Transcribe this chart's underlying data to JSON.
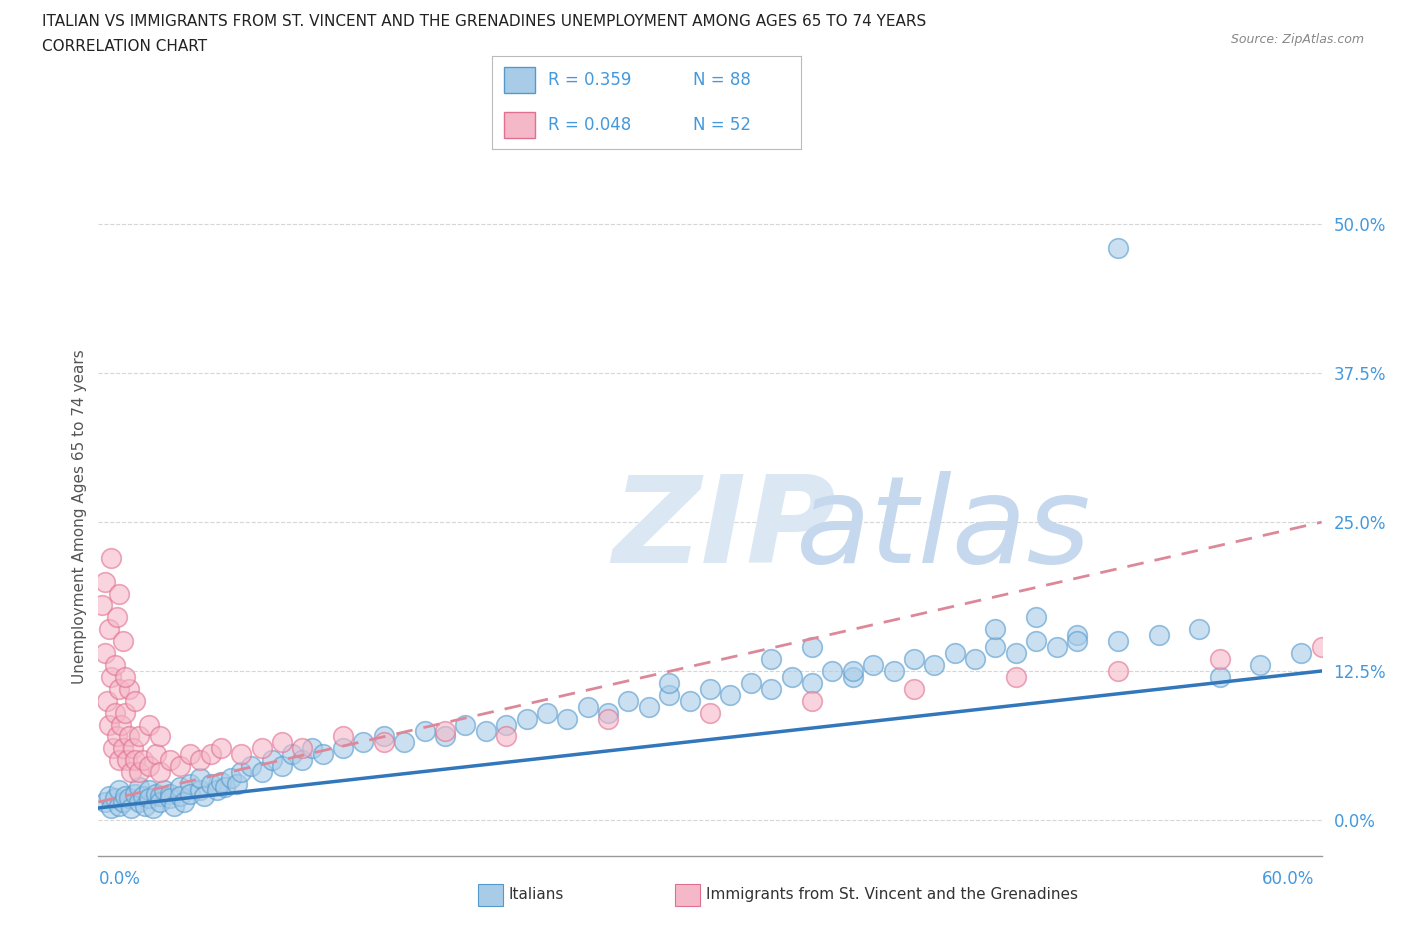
{
  "title_line1": "ITALIAN VS IMMIGRANTS FROM ST. VINCENT AND THE GRENADINES UNEMPLOYMENT AMONG AGES 65 TO 74 YEARS",
  "title_line2": "CORRELATION CHART",
  "source": "Source: ZipAtlas.com",
  "ylabel": "Unemployment Among Ages 65 to 74 years",
  "ytick_vals": [
    0.0,
    12.5,
    25.0,
    37.5,
    50.0
  ],
  "ytick_labels": [
    "0.0%",
    "12.5%",
    "25.0%",
    "37.5%",
    "50.0%"
  ],
  "xmin": 0.0,
  "xmax": 60.0,
  "ymin": -3.0,
  "ymax": 54.0,
  "italian_color": "#a8cce8",
  "italian_edge_color": "#5599cc",
  "svg_color": "#f5b8c8",
  "svg_edge_color": "#e07090",
  "italian_line_color": "#3377bb",
  "svg_line_color": "#dd8899",
  "tick_color": "#4499dd",
  "watermark_zip_color": "#dde8f5",
  "watermark_atlas_color": "#c8dff0",
  "background_color": "#ffffff",
  "grid_color": "#cccccc",
  "italian_scatter_x": [
    0.3,
    0.5,
    0.6,
    0.8,
    1.0,
    1.0,
    1.2,
    1.3,
    1.5,
    1.6,
    1.8,
    2.0,
    2.0,
    2.2,
    2.3,
    2.5,
    2.5,
    2.7,
    2.8,
    3.0,
    3.0,
    3.2,
    3.5,
    3.5,
    3.7,
    4.0,
    4.0,
    4.2,
    4.5,
    4.5,
    5.0,
    5.0,
    5.2,
    5.5,
    5.8,
    6.0,
    6.2,
    6.5,
    6.8,
    7.0,
    7.5,
    8.0,
    8.5,
    9.0,
    9.5,
    10.0,
    10.5,
    11.0,
    12.0,
    13.0,
    14.0,
    15.0,
    16.0,
    17.0,
    18.0,
    19.0,
    20.0,
    21.0,
    22.0,
    23.0,
    24.0,
    25.0,
    26.0,
    27.0,
    28.0,
    29.0,
    30.0,
    31.0,
    32.0,
    33.0,
    34.0,
    35.0,
    36.0,
    37.0,
    38.0,
    39.0,
    40.0,
    41.0,
    42.0,
    43.0,
    44.0,
    45.0,
    46.0,
    47.0,
    48.0,
    50.0,
    52.0,
    54.0
  ],
  "italian_scatter_y": [
    1.5,
    2.0,
    1.0,
    1.8,
    1.2,
    2.5,
    1.5,
    2.0,
    1.8,
    1.0,
    2.2,
    1.5,
    2.8,
    2.0,
    1.2,
    2.5,
    1.8,
    1.0,
    2.2,
    2.0,
    1.5,
    2.5,
    2.2,
    1.8,
    1.2,
    2.8,
    2.0,
    1.5,
    3.0,
    2.2,
    2.5,
    3.5,
    2.0,
    3.0,
    2.5,
    3.2,
    2.8,
    3.5,
    3.0,
    4.0,
    4.5,
    4.0,
    5.0,
    4.5,
    5.5,
    5.0,
    6.0,
    5.5,
    6.0,
    6.5,
    7.0,
    6.5,
    7.5,
    7.0,
    8.0,
    7.5,
    8.0,
    8.5,
    9.0,
    8.5,
    9.5,
    9.0,
    10.0,
    9.5,
    10.5,
    10.0,
    11.0,
    10.5,
    11.5,
    11.0,
    12.0,
    11.5,
    12.5,
    12.0,
    13.0,
    12.5,
    13.5,
    13.0,
    14.0,
    13.5,
    14.5,
    14.0,
    15.0,
    14.5,
    15.5,
    15.0,
    15.5,
    16.0
  ],
  "italian_scatter_x2": [
    55.0,
    57.0,
    59.0,
    44.0,
    46.0,
    48.0,
    33.0,
    35.0,
    37.0,
    28.0,
    50.0
  ],
  "italian_scatter_y2": [
    12.0,
    13.0,
    14.0,
    16.0,
    17.0,
    15.0,
    13.5,
    14.5,
    12.5,
    11.5,
    48.0
  ],
  "svg_scatter_x": [
    0.2,
    0.3,
    0.4,
    0.5,
    0.6,
    0.7,
    0.8,
    0.9,
    1.0,
    1.0,
    1.1,
    1.2,
    1.3,
    1.4,
    1.5,
    1.6,
    1.7,
    1.8,
    2.0,
    2.0,
    2.2,
    2.5,
    2.8,
    3.0,
    3.5,
    4.0,
    4.5,
    5.0,
    5.5,
    6.0,
    7.0,
    8.0,
    9.0,
    10.0,
    12.0,
    14.0,
    17.0,
    20.0,
    25.0,
    30.0,
    35.0,
    40.0,
    45.0,
    50.0,
    55.0,
    60.0
  ],
  "svg_scatter_y": [
    18.0,
    14.0,
    10.0,
    8.0,
    12.0,
    6.0,
    9.0,
    7.0,
    5.0,
    11.0,
    8.0,
    6.0,
    9.0,
    5.0,
    7.0,
    4.0,
    6.0,
    5.0,
    4.0,
    7.0,
    5.0,
    4.5,
    5.5,
    4.0,
    5.0,
    4.5,
    5.5,
    5.0,
    5.5,
    6.0,
    5.5,
    6.0,
    6.5,
    6.0,
    7.0,
    6.5,
    7.5,
    7.0,
    8.5,
    9.0,
    10.0,
    11.0,
    12.0,
    12.5,
    13.5,
    14.5
  ],
  "svg_scatter_x_extra": [
    0.3,
    0.5,
    0.8,
    1.0,
    1.2,
    1.5,
    0.6,
    0.9,
    1.3,
    1.8,
    2.5,
    3.0
  ],
  "svg_scatter_y_extra": [
    20.0,
    16.0,
    13.0,
    19.0,
    15.0,
    11.0,
    22.0,
    17.0,
    12.0,
    10.0,
    8.0,
    7.0
  ],
  "italian_trend_x": [
    0.0,
    60.0
  ],
  "italian_trend_y": [
    1.0,
    12.5
  ],
  "svg_trend_x": [
    0.0,
    60.0
  ],
  "svg_trend_y": [
    1.5,
    25.0
  ]
}
